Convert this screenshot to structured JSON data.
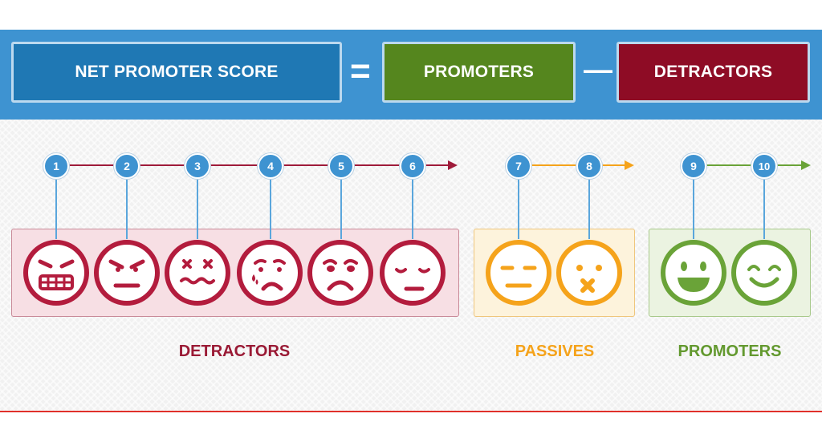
{
  "equation": {
    "nps_label": "NET PROMOTER SCORE",
    "equals": "=",
    "promoters_label": "PROMOTERS",
    "minus": "—",
    "detractors_label": "DETRACTORS"
  },
  "scale": [
    "1",
    "2",
    "3",
    "4",
    "5",
    "6",
    "7",
    "8",
    "9",
    "10"
  ],
  "faces": [
    "angry-grimace-icon",
    "mad-icon",
    "dizzy-icon",
    "crying-icon",
    "sad-icon",
    "bored-icon",
    "neutral-icon",
    "shocked-icon",
    "laughing-icon",
    "happy-icon"
  ],
  "categories": {
    "detractors": "DETRACTORS",
    "passives": "PASSIVES",
    "promoters": "PROMOTERS"
  },
  "colors": {
    "banner": "#3e93d1",
    "nps_box": "#1f78b4",
    "promoters": "#55861e",
    "detractors": "#8e0c25",
    "detractor_face": "#b31c3d",
    "passive_face": "#f5a31b",
    "promoter_face": "#6aa338",
    "number_badge": "#3e93d1"
  }
}
